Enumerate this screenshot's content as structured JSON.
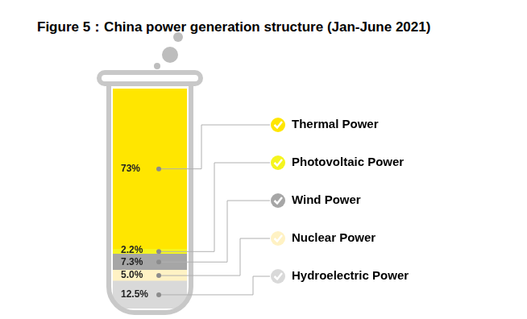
{
  "chart_data": {
    "type": "bar",
    "title": "Figure 5：China power generation structure (Jan-June 2021)",
    "categories": [
      null
    ],
    "series": [
      {
        "name": "Thermal Power",
        "color": "#FFE600",
        "values": [
          73
        ],
        "value_labels": [
          "73%"
        ]
      },
      {
        "name": "Photovoltaic Power",
        "color": "#F5F51E",
        "values": [
          2.2
        ],
        "value_labels": [
          "2.2%"
        ]
      },
      {
        "name": "Wind Power",
        "color": "#A6A6A6",
        "values": [
          7.3
        ],
        "value_labels": [
          "7.3%"
        ]
      },
      {
        "name": "Nuclear Power",
        "color": "#FFF2C4",
        "values": [
          5.0
        ],
        "value_labels": [
          "5.0%"
        ]
      },
      {
        "name": "Hydroelectric Power",
        "color": "#D9D9D9",
        "values": [
          12.5
        ],
        "value_labels": [
          "12.5%"
        ]
      }
    ],
    "ylim": [
      0,
      100
    ],
    "stacked": true,
    "data_labels": true,
    "tick_labels": false,
    "grid": false,
    "legend": "right"
  }
}
